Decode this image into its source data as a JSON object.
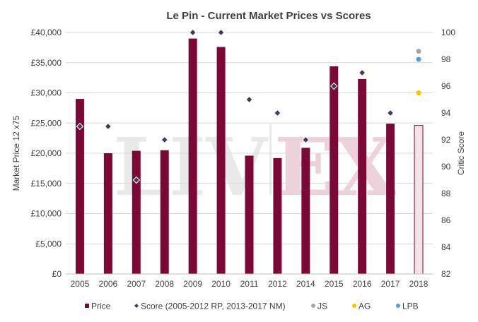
{
  "chart_data": {
    "type": "bar",
    "title": "Le Pin - Current Market Prices vs Scores",
    "ylabel": "Market Price 12 x75",
    "y2label": "Critic Score",
    "categories": [
      "2005",
      "2006",
      "2007",
      "2008",
      "2009",
      "2010",
      "2011",
      "2012",
      "2014",
      "2015",
      "2016",
      "2017",
      "2018"
    ],
    "ylim": [
      0,
      40000
    ],
    "y2lim": [
      82,
      100
    ],
    "y_ticks": [
      "£0",
      "£5,000",
      "£10,000",
      "£15,000",
      "£20,000",
      "£25,000",
      "£30,000",
      "£35,000",
      "£40,000"
    ],
    "y2_ticks": [
      "82",
      "84",
      "86",
      "88",
      "90",
      "92",
      "94",
      "96",
      "98",
      "100"
    ],
    "series": [
      {
        "name": "Price",
        "type": "bar",
        "color": "#7a0a35",
        "values": [
          29000,
          20000,
          20400,
          20500,
          39000,
          37600,
          19600,
          19200,
          20900,
          34400,
          32300,
          24900,
          24600
        ],
        "highlight_last": true,
        "highlight_fill": "#f6e3ea"
      },
      {
        "name": "Score (2005-2012 RP, 2013-2017 NM)",
        "type": "scatter",
        "marker": "diamond",
        "color": "#3d3a5c",
        "values": [
          93,
          93,
          89,
          92,
          100,
          100,
          95,
          94,
          92,
          96,
          97,
          94,
          null
        ]
      },
      {
        "name": "JS",
        "type": "scatter",
        "marker": "circle",
        "color": "#a6a6a6",
        "values": [
          null,
          null,
          null,
          null,
          null,
          null,
          null,
          null,
          null,
          null,
          null,
          null,
          98.6
        ]
      },
      {
        "name": "AG",
        "type": "scatter",
        "marker": "circle",
        "color": "#ffc000",
        "values": [
          null,
          null,
          null,
          null,
          null,
          null,
          null,
          null,
          null,
          null,
          null,
          null,
          95.5
        ]
      },
      {
        "name": "LPB",
        "type": "scatter",
        "marker": "circle",
        "color": "#5b9bd5",
        "values": [
          null,
          null,
          null,
          null,
          null,
          null,
          null,
          null,
          null,
          null,
          null,
          null,
          98.0
        ]
      }
    ],
    "watermark": "LIV EX",
    "grid": "horizontal",
    "legend_position": "bottom"
  }
}
